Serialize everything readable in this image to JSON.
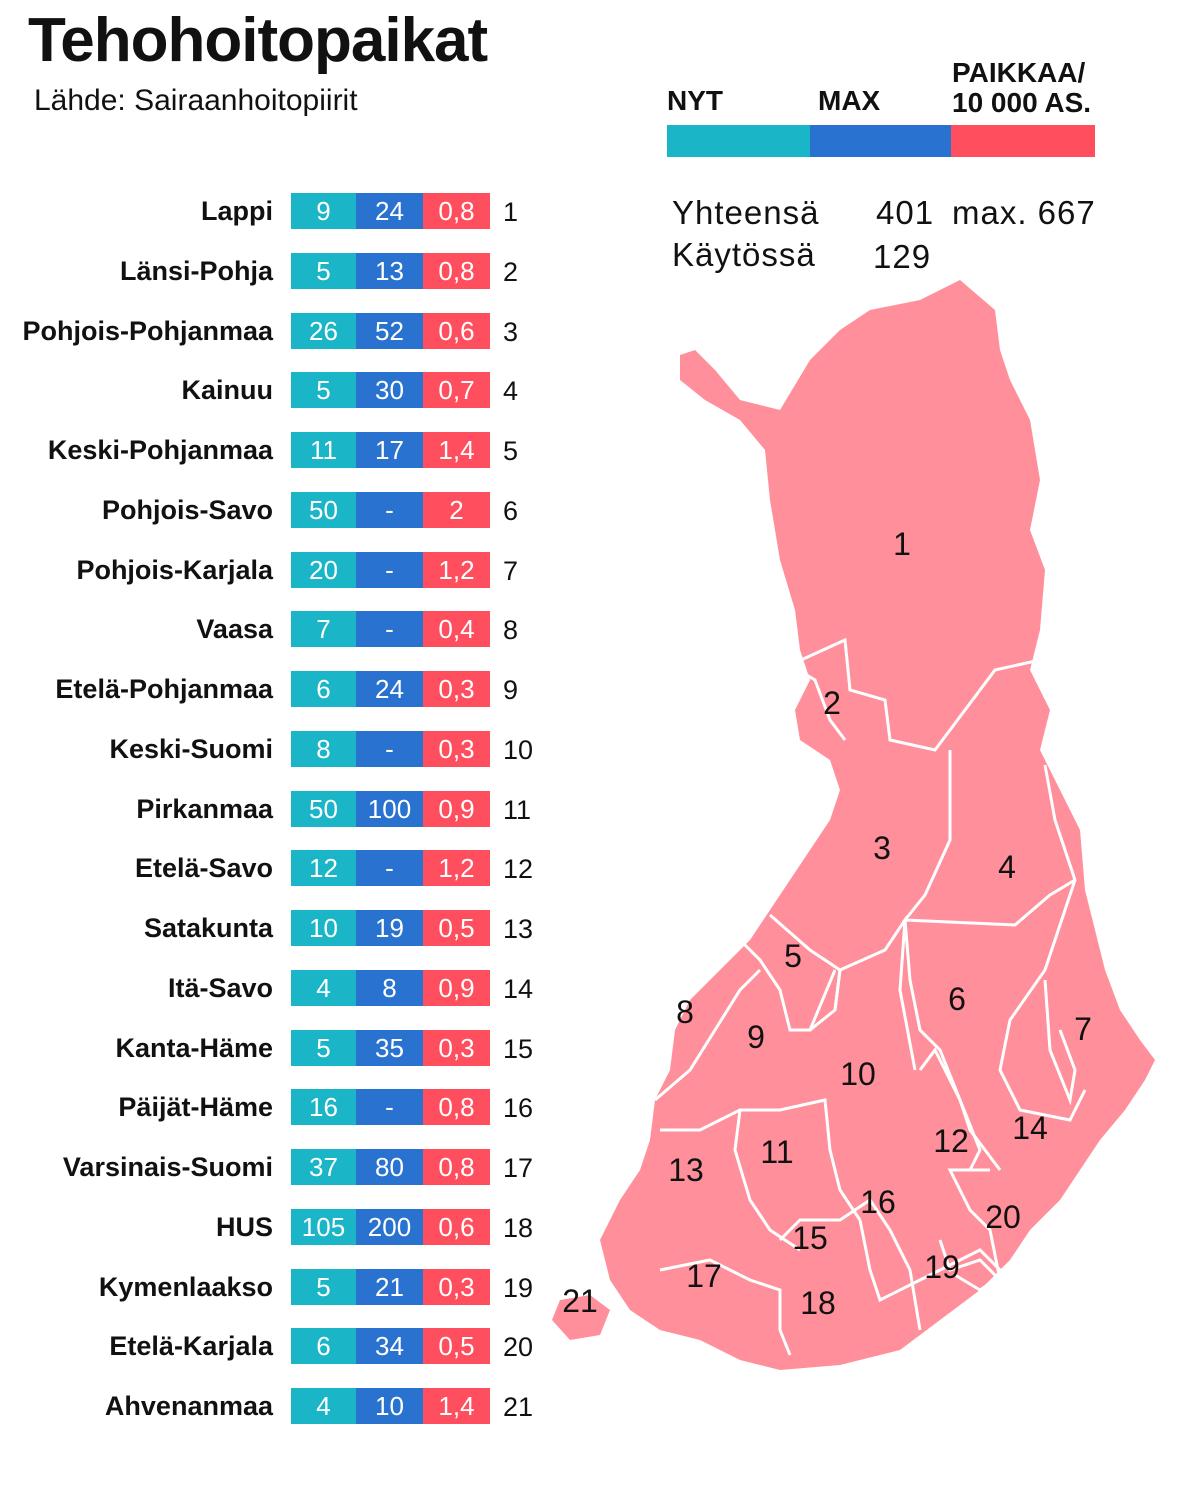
{
  "title": "Tehohoitopaikat",
  "source": "Lähde: Sairaanhoitopiirit",
  "legend": {
    "nyt": "NYT",
    "max": "MAX",
    "per_line1": "PAIKKAA/",
    "per_line2": "10 000 AS.",
    "colors": {
      "nyt": "#1bb5c8",
      "max": "#2a72d0",
      "per": "#ff4e5e"
    }
  },
  "totals": {
    "total_label": "Yhteensä",
    "total_value": "401",
    "total_max": "max. 667",
    "in_use_label": "Käytössä",
    "in_use_value": "129"
  },
  "map": {
    "region_color": "#ff8f9a",
    "border_color": "#ffffff"
  },
  "districts": [
    {
      "name": "Lappi",
      "nyt": "9",
      "max": "24",
      "per": "0,8",
      "num": "1"
    },
    {
      "name": "Länsi-Pohja",
      "nyt": "5",
      "max": "13",
      "per": "0,8",
      "num": "2"
    },
    {
      "name": "Pohjois-Pohjanmaa",
      "nyt": "26",
      "max": "52",
      "per": "0,6",
      "num": "3"
    },
    {
      "name": "Kainuu",
      "nyt": "5",
      "max": "30",
      "per": "0,7",
      "num": "4"
    },
    {
      "name": "Keski-Pohjanmaa",
      "nyt": "11",
      "max": "17",
      "per": "1,4",
      "num": "5"
    },
    {
      "name": "Pohjois-Savo",
      "nyt": "50",
      "max": "-",
      "per": "2",
      "num": "6"
    },
    {
      "name": "Pohjois-Karjala",
      "nyt": "20",
      "max": "-",
      "per": "1,2",
      "num": "7"
    },
    {
      "name": "Vaasa",
      "nyt": "7",
      "max": "-",
      "per": "0,4",
      "num": "8"
    },
    {
      "name": "Etelä-Pohjanmaa",
      "nyt": "6",
      "max": "24",
      "per": "0,3",
      "num": "9"
    },
    {
      "name": "Keski-Suomi",
      "nyt": "8",
      "max": "-",
      "per": "0,3",
      "num": "10"
    },
    {
      "name": "Pirkanmaa",
      "nyt": "50",
      "max": "100",
      "per": "0,9",
      "num": "11"
    },
    {
      "name": "Etelä-Savo",
      "nyt": "12",
      "max": "-",
      "per": "1,2",
      "num": "12"
    },
    {
      "name": "Satakunta",
      "nyt": "10",
      "max": "19",
      "per": "0,5",
      "num": "13"
    },
    {
      "name": "Itä-Savo",
      "nyt": "4",
      "max": "8",
      "per": "0,9",
      "num": "14"
    },
    {
      "name": "Kanta-Häme",
      "nyt": "5",
      "max": "35",
      "per": "0,3",
      "num": "15"
    },
    {
      "name": "Päijät-Häme",
      "nyt": "16",
      "max": "-",
      "per": "0,8",
      "num": "16"
    },
    {
      "name": "Varsinais-Suomi",
      "nyt": "37",
      "max": "80",
      "per": "0,8",
      "num": "17"
    },
    {
      "name": "HUS",
      "nyt": "105",
      "max": "200",
      "per": "0,6",
      "num": "18"
    },
    {
      "name": "Kymenlaakso",
      "nyt": "5",
      "max": "21",
      "per": "0,3",
      "num": "19"
    },
    {
      "name": "Etelä-Karjala",
      "nyt": "6",
      "max": "34",
      "per": "0,5",
      "num": "20"
    },
    {
      "name": "Ahvenanmaa",
      "nyt": "4",
      "max": "10",
      "per": "1,4",
      "num": "21"
    }
  ]
}
